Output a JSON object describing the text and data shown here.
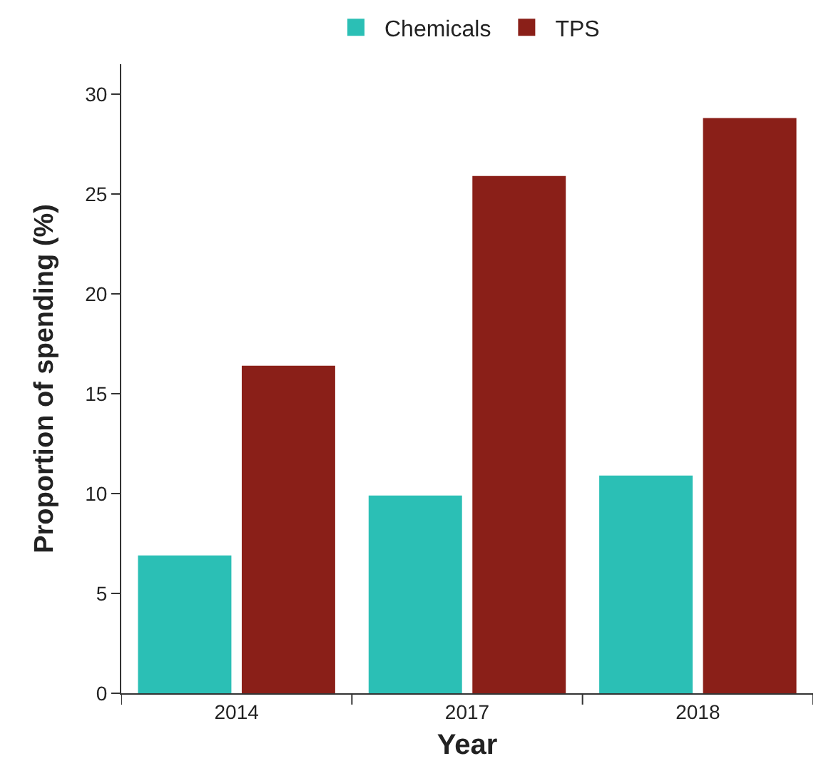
{
  "chart_data": {
    "type": "bar",
    "xlabel": "Year",
    "ylabel": "Proportion of spending (%)",
    "categories": [
      "2014",
      "2017",
      "2018"
    ],
    "series": [
      {
        "name": "Chemicals",
        "color": "#2bbfb5",
        "values": [
          6.9,
          9.9,
          10.9
        ]
      },
      {
        "name": "TPS",
        "color": "#8a1f18",
        "values": [
          16.4,
          25.9,
          28.8
        ]
      }
    ],
    "ylim": [
      0,
      31.5
    ],
    "yticks": [
      0,
      5,
      10,
      15,
      20,
      25,
      30
    ],
    "grid": false,
    "legend": "top"
  }
}
